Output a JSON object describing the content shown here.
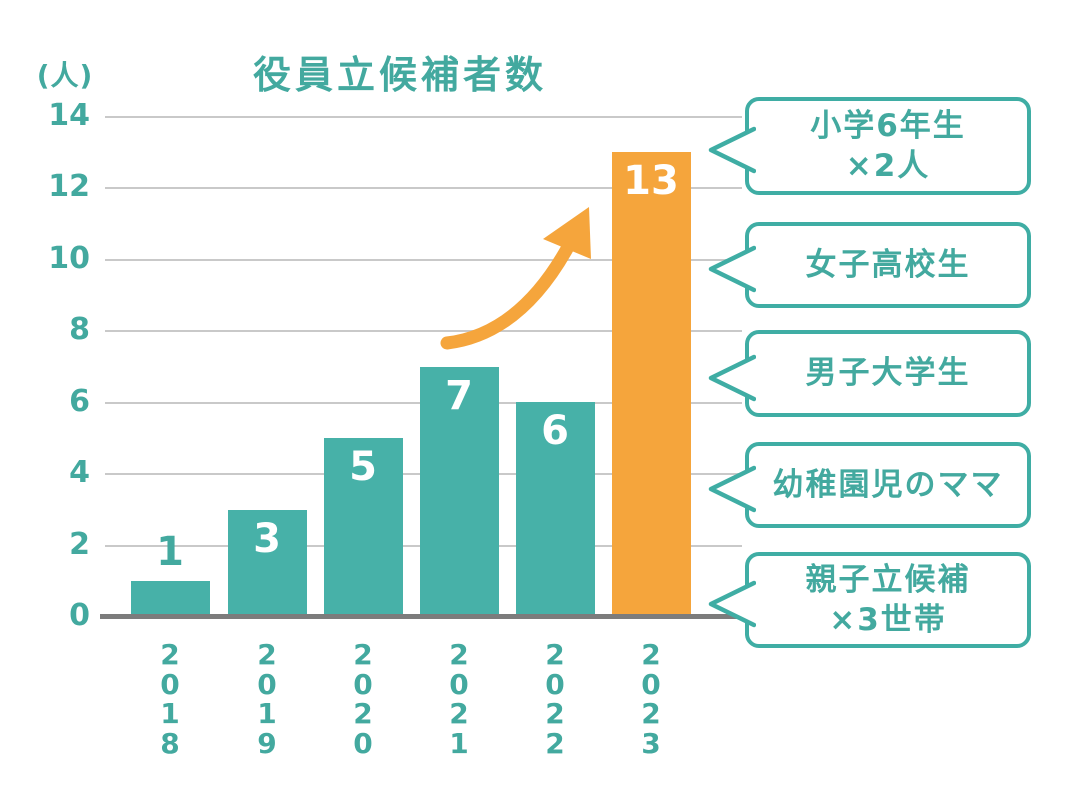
{
  "chart_data": {
    "type": "bar",
    "title": "役員立候補者数",
    "unit_label": "(人)",
    "categories": [
      "2018",
      "2019",
      "2020",
      "2021",
      "2022",
      "2023"
    ],
    "values": [
      1,
      3,
      5,
      7,
      6,
      13
    ],
    "bar_value_labels": [
      "1",
      "3",
      "5",
      "7",
      "6",
      "13"
    ],
    "highlight_index": 5,
    "highlight_category": "2023",
    "ylim": [
      0,
      14
    ],
    "yticks": [
      0,
      2,
      4,
      6,
      8,
      10,
      12,
      14
    ],
    "grid": true,
    "legend": "none",
    "annotation": "orange curved growth arrow pointing from the 2021 bar up to the 2023 bar"
  },
  "callouts": [
    {
      "lines": [
        "小学6年生",
        "×2人"
      ]
    },
    {
      "lines": [
        "女子高校生"
      ]
    },
    {
      "lines": [
        "男子大学生"
      ]
    },
    {
      "lines": [
        "幼稚園児のママ"
      ]
    },
    {
      "lines": [
        "親子立候補",
        "×3世帯"
      ]
    }
  ],
  "colors": {
    "teal_bar": "#47b1a8",
    "teal_text": "#43a99f",
    "teal_border": "#3fada4",
    "orange": "#f5a53c",
    "grid": "#c9c9c9",
    "axis": "#7c7c7c",
    "value_label_inside": "#ffffff"
  }
}
